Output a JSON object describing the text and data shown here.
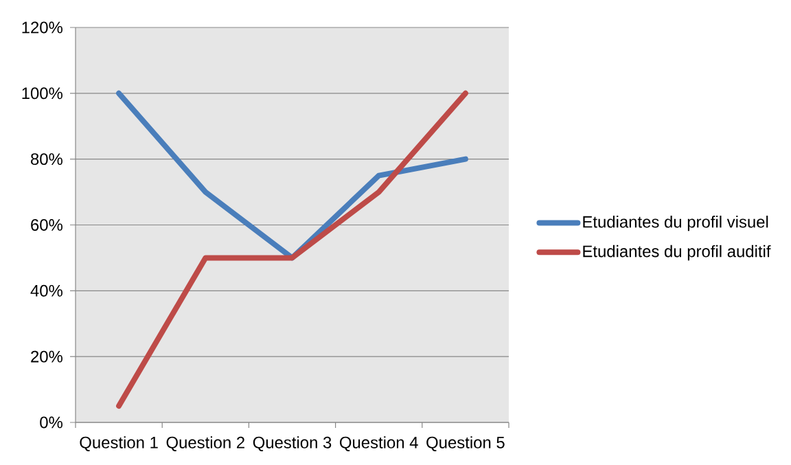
{
  "chart_data": {
    "type": "line",
    "categories": [
      "Question 1",
      "Question 2",
      "Question 3",
      "Question 4",
      "Question 5"
    ],
    "series": [
      {
        "name": "Etudiantes du profil visuel",
        "color": "#4a7ebb",
        "values": [
          100,
          70,
          50,
          75,
          80
        ]
      },
      {
        "name": "Etudiantes du profil auditif",
        "color": "#be4b48",
        "values": [
          5,
          50,
          50,
          70,
          100
        ]
      }
    ],
    "ylim": [
      0,
      120
    ],
    "yticks": [
      {
        "value": 0,
        "label": "0%"
      },
      {
        "value": 20,
        "label": "20%"
      },
      {
        "value": 40,
        "label": "40%"
      },
      {
        "value": 60,
        "label": "60%"
      },
      {
        "value": 80,
        "label": "80%"
      },
      {
        "value": 100,
        "label": "100%"
      },
      {
        "value": 120,
        "label": "120%"
      }
    ],
    "grid": "y",
    "legend": "right",
    "marker": "none",
    "line_style": "solid"
  }
}
